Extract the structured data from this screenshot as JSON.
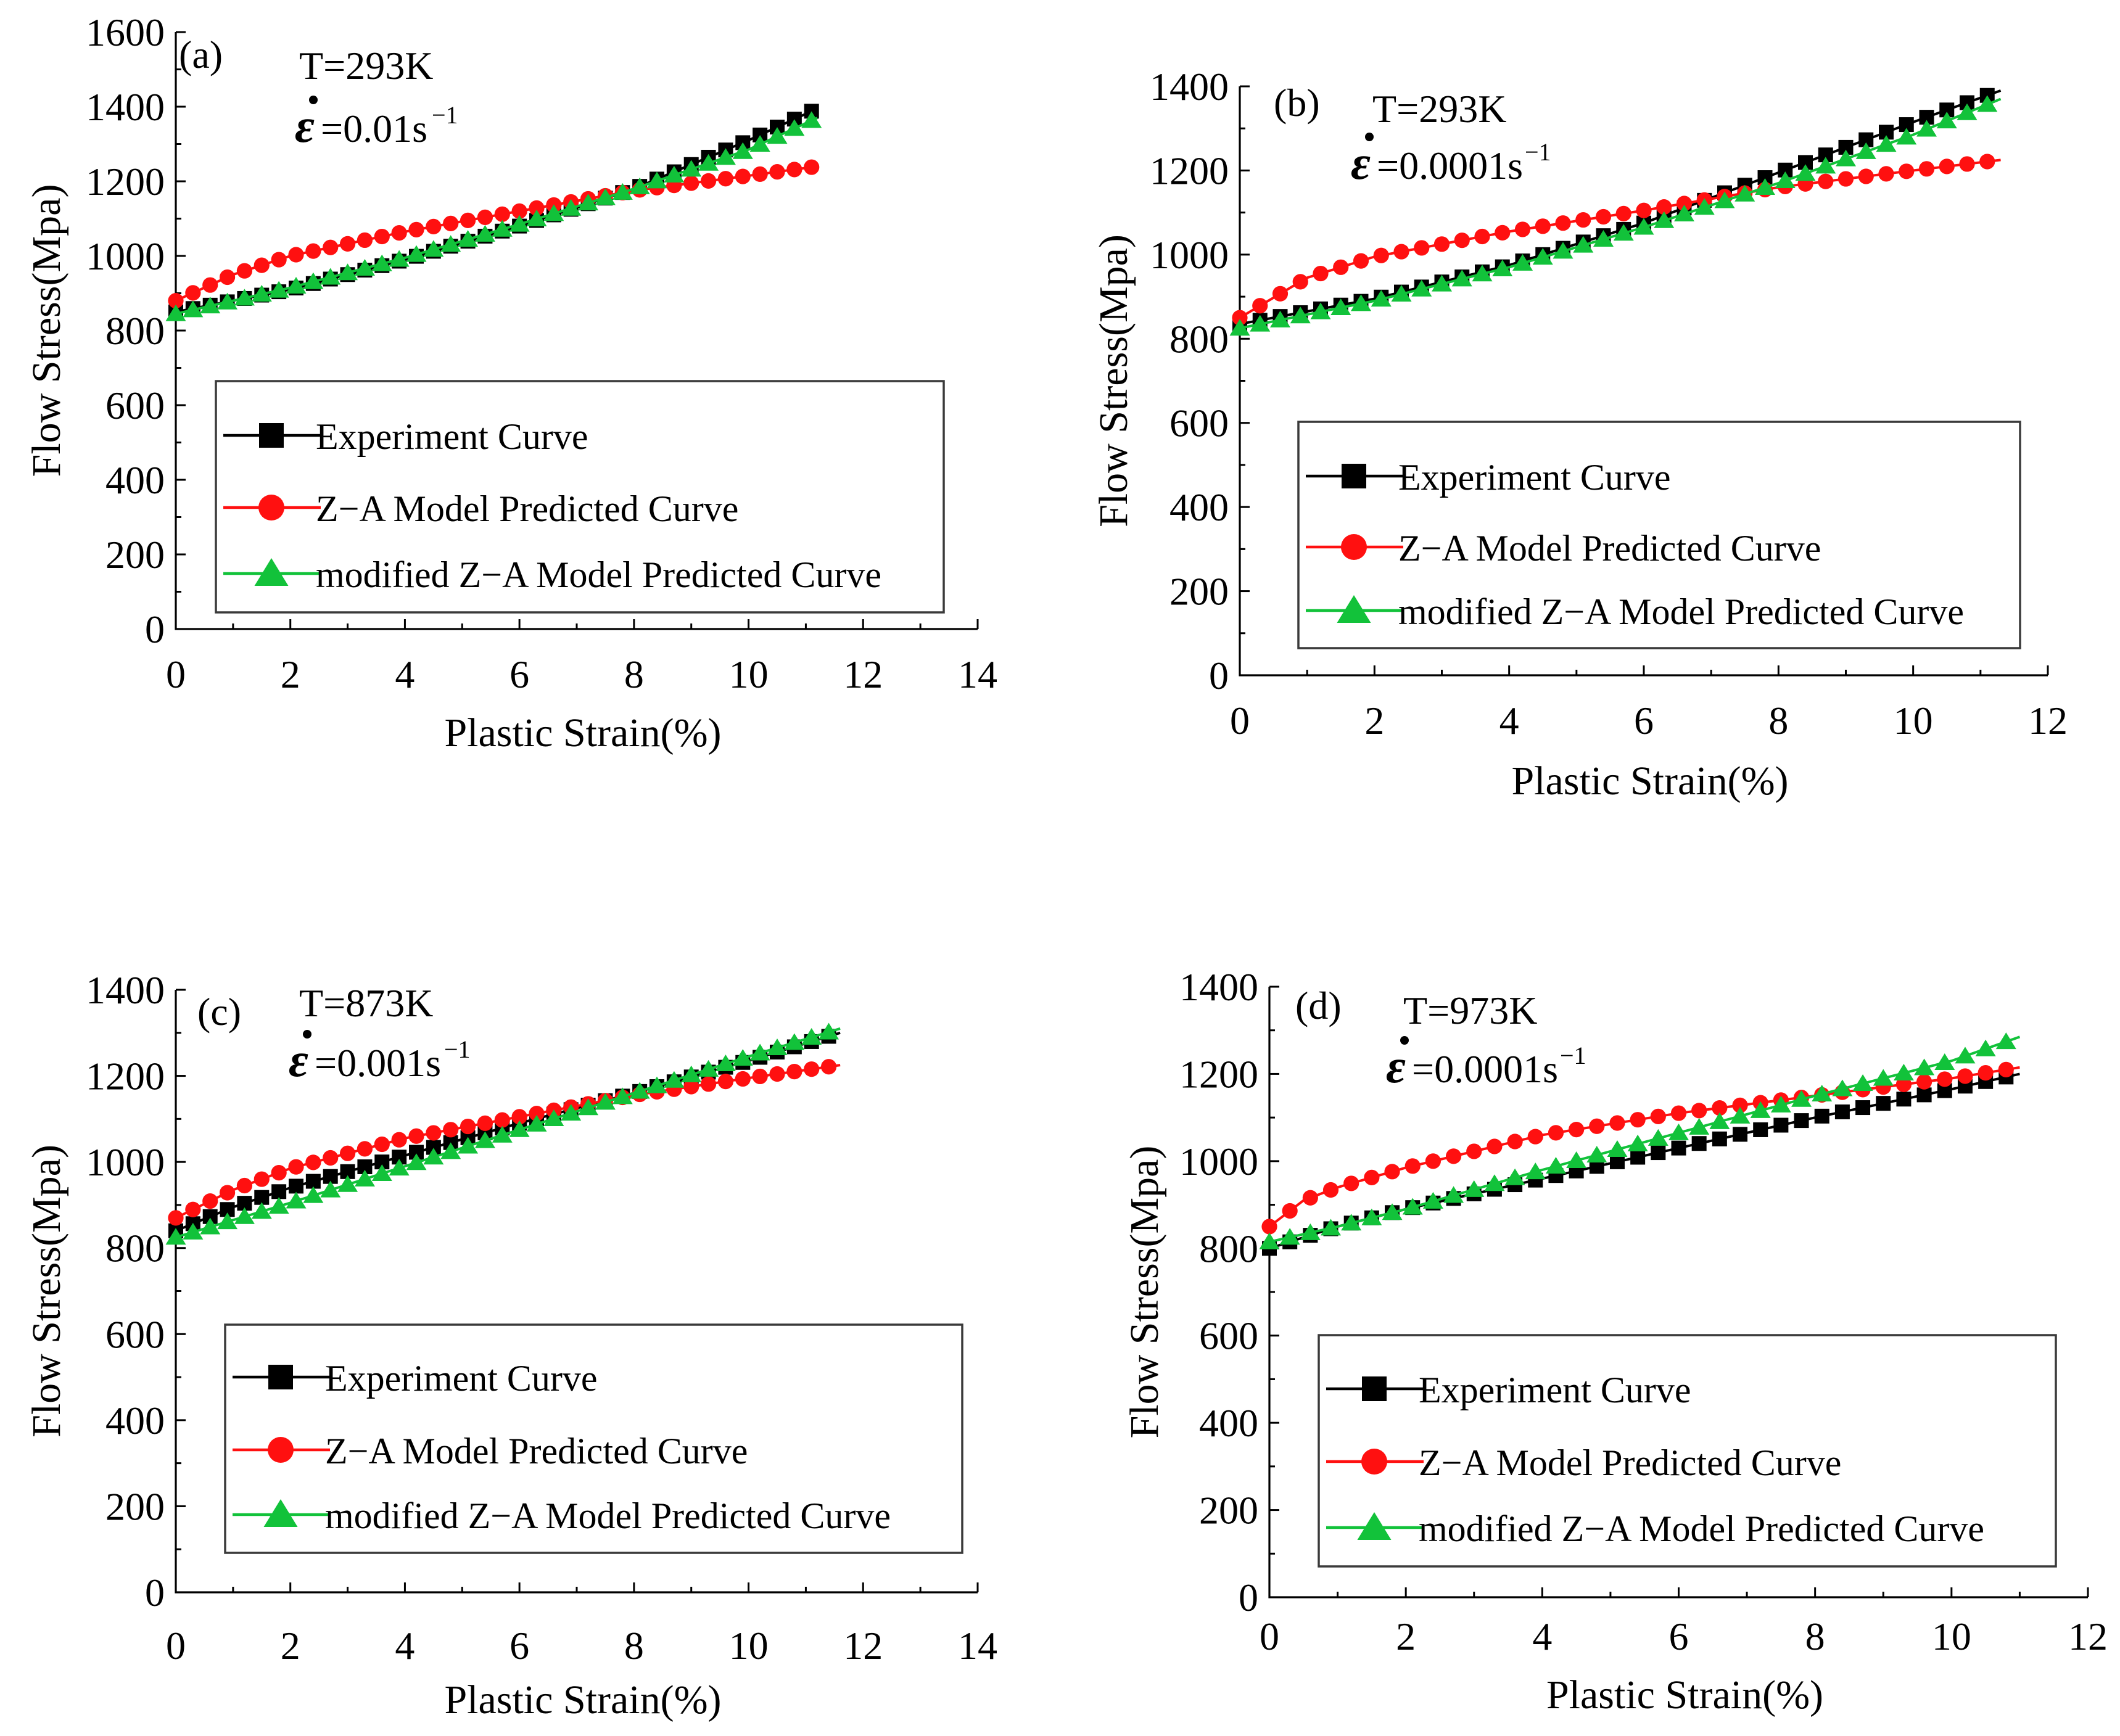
{
  "colors": {
    "experiment": "#000000",
    "za": "#ff1010",
    "modified": "#12c23a"
  },
  "chart_data": [
    {
      "type": "line",
      "panel_label": "(a)",
      "temperature": "T=293K",
      "strain_rate_value": "=0.01s",
      "strain_rate_exp": "−1",
      "title": "",
      "xlabel": "Plastic Strain(%)",
      "ylabel": "Flow Stress(Mpa)",
      "xlim": [
        0,
        14
      ],
      "ylim": [
        0,
        1600
      ],
      "xticks": [
        0,
        2,
        4,
        6,
        8,
        10,
        12,
        14
      ],
      "yticks": [
        0,
        200,
        400,
        600,
        800,
        1000,
        1200,
        1400,
        1600
      ],
      "legend": [
        "Experiment Curve",
        "Z−A Model Predicted Curve",
        "modified Z−A Model Predicted Curve"
      ],
      "series": [
        {
          "name": "Experiment Curve",
          "x": [
            0,
            2,
            4,
            6,
            8,
            10,
            11.2
          ],
          "values": [
            850,
            910,
            990,
            1080,
            1180,
            1310,
            1395
          ]
        },
        {
          "name": "Z−A Model Predicted Curve",
          "x": [
            0,
            1,
            2,
            4,
            6,
            8,
            10,
            11.2
          ],
          "values": [
            880,
            950,
            1000,
            1065,
            1120,
            1175,
            1215,
            1240
          ]
        },
        {
          "name": "modified Z−A Model Predicted Curve",
          "x": [
            0,
            2,
            4,
            6,
            8,
            10,
            11.2
          ],
          "values": [
            845,
            915,
            995,
            1085,
            1180,
            1285,
            1370
          ]
        }
      ]
    },
    {
      "type": "line",
      "panel_label": "(b)",
      "temperature": "T=293K",
      "strain_rate_value": "=0.0001s",
      "strain_rate_exp": "−1",
      "title": "",
      "xlabel": "Plastic Strain(%)",
      "ylabel": "Flow Stress(Mpa)",
      "xlim": [
        0,
        12
      ],
      "ylim": [
        0,
        1400
      ],
      "xticks": [
        0,
        2,
        4,
        6,
        8,
        10,
        12
      ],
      "yticks": [
        0,
        200,
        400,
        600,
        800,
        1000,
        1200,
        1400
      ],
      "legend": [
        "Experiment Curve",
        "Z−A Model Predicted Curve",
        "modified Z−A Model Predicted Curve"
      ],
      "series": [
        {
          "name": "Experiment Curve",
          "x": [
            0,
            2,
            4,
            6,
            8,
            10,
            11.3
          ],
          "values": [
            835,
            895,
            975,
            1075,
            1195,
            1315,
            1390
          ]
        },
        {
          "name": "Z−A Model Predicted Curve",
          "x": [
            0,
            1,
            2,
            4,
            6,
            8,
            10,
            11.3
          ],
          "values": [
            850,
            945,
            995,
            1055,
            1105,
            1160,
            1200,
            1225
          ]
        },
        {
          "name": "modified Z−A Model Predicted Curve",
          "x": [
            0,
            2,
            4,
            6,
            8,
            10,
            11.3
          ],
          "values": [
            825,
            890,
            970,
            1065,
            1170,
            1285,
            1370
          ]
        }
      ]
    },
    {
      "type": "line",
      "panel_label": "(c)",
      "temperature": "T=873K",
      "strain_rate_value": "=0.001s",
      "strain_rate_exp": "−1",
      "title": "",
      "xlabel": "Plastic Strain(%)",
      "ylabel": "Flow Stress(Mpa)",
      "xlim": [
        0,
        14
      ],
      "ylim": [
        0,
        1400
      ],
      "xticks": [
        0,
        2,
        4,
        6,
        8,
        10,
        12,
        14
      ],
      "yticks": [
        0,
        200,
        400,
        600,
        800,
        1000,
        1200,
        1400
      ],
      "legend": [
        "Experiment Curve",
        "Z−A Model Predicted Curve",
        "modified Z−A Model Predicted Curve"
      ],
      "series": [
        {
          "name": "Experiment Curve",
          "x": [
            0,
            1,
            2,
            4,
            6,
            8,
            10,
            11.6
          ],
          "values": [
            840,
            895,
            940,
            1015,
            1090,
            1160,
            1235,
            1300
          ]
        },
        {
          "name": "Z−A Model Predicted Curve",
          "x": [
            0,
            1,
            2,
            4,
            6,
            8,
            10,
            11.6
          ],
          "values": [
            870,
            935,
            985,
            1055,
            1105,
            1155,
            1195,
            1225
          ]
        },
        {
          "name": "modified Z−A Model Predicted Curve",
          "x": [
            0,
            2,
            4,
            6,
            8,
            10,
            11.6
          ],
          "values": [
            825,
            905,
            990,
            1075,
            1160,
            1245,
            1310
          ]
        }
      ]
    },
    {
      "type": "line",
      "panel_label": "(d)",
      "temperature": "T=973K",
      "strain_rate_value": "=0.0001s",
      "strain_rate_exp": "−1",
      "title": "",
      "xlabel": "Plastic Strain(%)",
      "ylabel": "Flow Stress(Mpa)",
      "xlim": [
        0,
        12
      ],
      "ylim": [
        0,
        1400
      ],
      "xticks": [
        0,
        2,
        4,
        6,
        8,
        10,
        12
      ],
      "yticks": [
        0,
        200,
        400,
        600,
        800,
        1000,
        1200,
        1400
      ],
      "legend": [
        "Experiment Curve",
        "Z−A Model Predicted Curve",
        "modified Z−A Model Predicted Curve"
      ],
      "series": [
        {
          "name": "Experiment Curve",
          "x": [
            0,
            1,
            2,
            4,
            6,
            8,
            10,
            11
          ],
          "values": [
            800,
            850,
            890,
            960,
            1030,
            1100,
            1165,
            1200
          ]
        },
        {
          "name": "Z−A Model Predicted Curve",
          "x": [
            0,
            0.5,
            1,
            2,
            4,
            6,
            8,
            10,
            11
          ],
          "values": [
            850,
            910,
            940,
            985,
            1060,
            1110,
            1150,
            1190,
            1215
          ]
        },
        {
          "name": "modified Z−A Model Predicted Curve",
          "x": [
            0,
            1,
            2,
            4,
            6,
            8,
            10,
            11
          ],
          "values": [
            815,
            850,
            890,
            980,
            1065,
            1150,
            1230,
            1285
          ]
        }
      ]
    }
  ]
}
